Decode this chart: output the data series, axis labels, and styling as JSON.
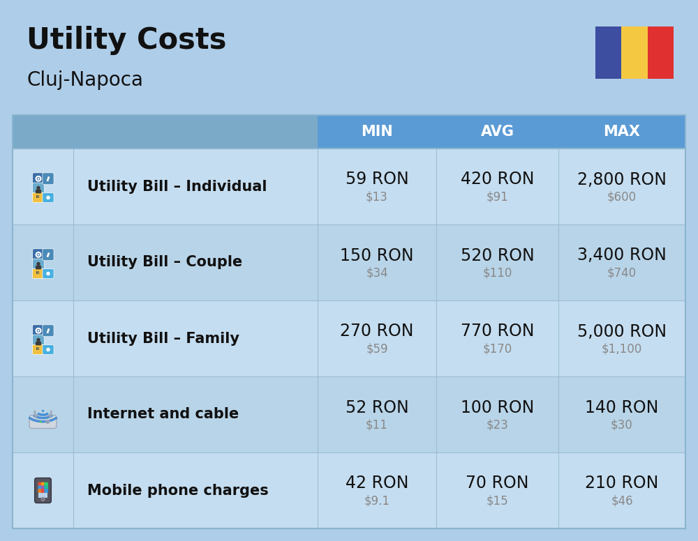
{
  "title": "Utility Costs",
  "subtitle": "Cluj-Napoca",
  "background_color": "#aecde8",
  "header_bg_color": "#5b9bd5",
  "header_text_color": "#ffffff",
  "row_bg_color_1": "#c5ddf0",
  "row_bg_color_2": "#b8d4e8",
  "col_header_labels": [
    "MIN",
    "AVG",
    "MAX"
  ],
  "rows": [
    {
      "label": "Utility Bill – Individual",
      "icon": "utility",
      "min_ron": "59 RON",
      "min_usd": "$13",
      "avg_ron": "420 RON",
      "avg_usd": "$91",
      "max_ron": "2,800 RON",
      "max_usd": "$600"
    },
    {
      "label": "Utility Bill – Couple",
      "icon": "utility",
      "min_ron": "150 RON",
      "min_usd": "$34",
      "avg_ron": "520 RON",
      "avg_usd": "$110",
      "max_ron": "3,400 RON",
      "max_usd": "$740"
    },
    {
      "label": "Utility Bill – Family",
      "icon": "utility",
      "min_ron": "270 RON",
      "min_usd": "$59",
      "avg_ron": "770 RON",
      "avg_usd": "$170",
      "max_ron": "5,000 RON",
      "max_usd": "$1,100"
    },
    {
      "label": "Internet and cable",
      "icon": "internet",
      "min_ron": "52 RON",
      "min_usd": "$11",
      "avg_ron": "100 RON",
      "avg_usd": "$23",
      "max_ron": "140 RON",
      "max_usd": "$30"
    },
    {
      "label": "Mobile phone charges",
      "icon": "mobile",
      "min_ron": "42 RON",
      "min_usd": "$9.1",
      "avg_ron": "70 RON",
      "avg_usd": "$15",
      "max_ron": "210 RON",
      "max_usd": "$46"
    }
  ],
  "flag_colors": [
    "#3d4da0",
    "#f5c842",
    "#e03030"
  ],
  "title_fontsize": 30,
  "subtitle_fontsize": 20,
  "header_fontsize": 15,
  "label_fontsize": 15,
  "value_fontsize": 17,
  "usd_fontsize": 12,
  "usd_color": "#888888"
}
